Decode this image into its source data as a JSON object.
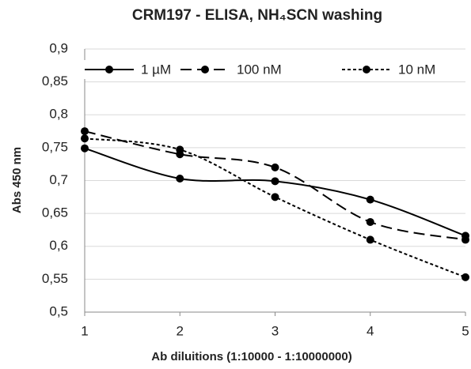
{
  "chart_data": {
    "type": "line",
    "title": "CRM197 - ELISA, NH₄SCN washing",
    "x_label": "Ab diluitions  (1:10000 - 1:10000000)",
    "y_label": "Abs 450 nm",
    "x": [
      1,
      2,
      3,
      4,
      5
    ],
    "xlim": [
      1,
      5
    ],
    "xticks": [
      1,
      2,
      3,
      4,
      5
    ],
    "ylim": [
      0.5,
      0.9
    ],
    "yticks": [
      {
        "value": 0.5,
        "label": "0,5"
      },
      {
        "value": 0.55,
        "label": "0,55"
      },
      {
        "value": 0.6,
        "label": "0,6"
      },
      {
        "value": 0.65,
        "label": "0,65"
      },
      {
        "value": 0.7,
        "label": "0,7"
      },
      {
        "value": 0.75,
        "label": "0,75"
      },
      {
        "value": 0.8,
        "label": "0,8"
      },
      {
        "value": 0.85,
        "label": "0,85"
      },
      {
        "value": 0.9,
        "label": "0,9"
      }
    ],
    "grid": true,
    "legend": "top",
    "smooth": true,
    "series": [
      {
        "name": "1 µM",
        "color": "#000000",
        "style": "solid",
        "values": [
          0.749,
          0.703,
          0.699,
          0.671,
          0.616
        ]
      },
      {
        "name": "100 nM",
        "color": "#000000",
        "style": "dashed",
        "values": [
          0.775,
          0.74,
          0.72,
          0.637,
          0.61
        ]
      },
      {
        "name": "10 nM",
        "color": "#000000",
        "style": "dotted",
        "values": [
          0.764,
          0.747,
          0.675,
          0.61,
          0.553
        ]
      }
    ]
  }
}
